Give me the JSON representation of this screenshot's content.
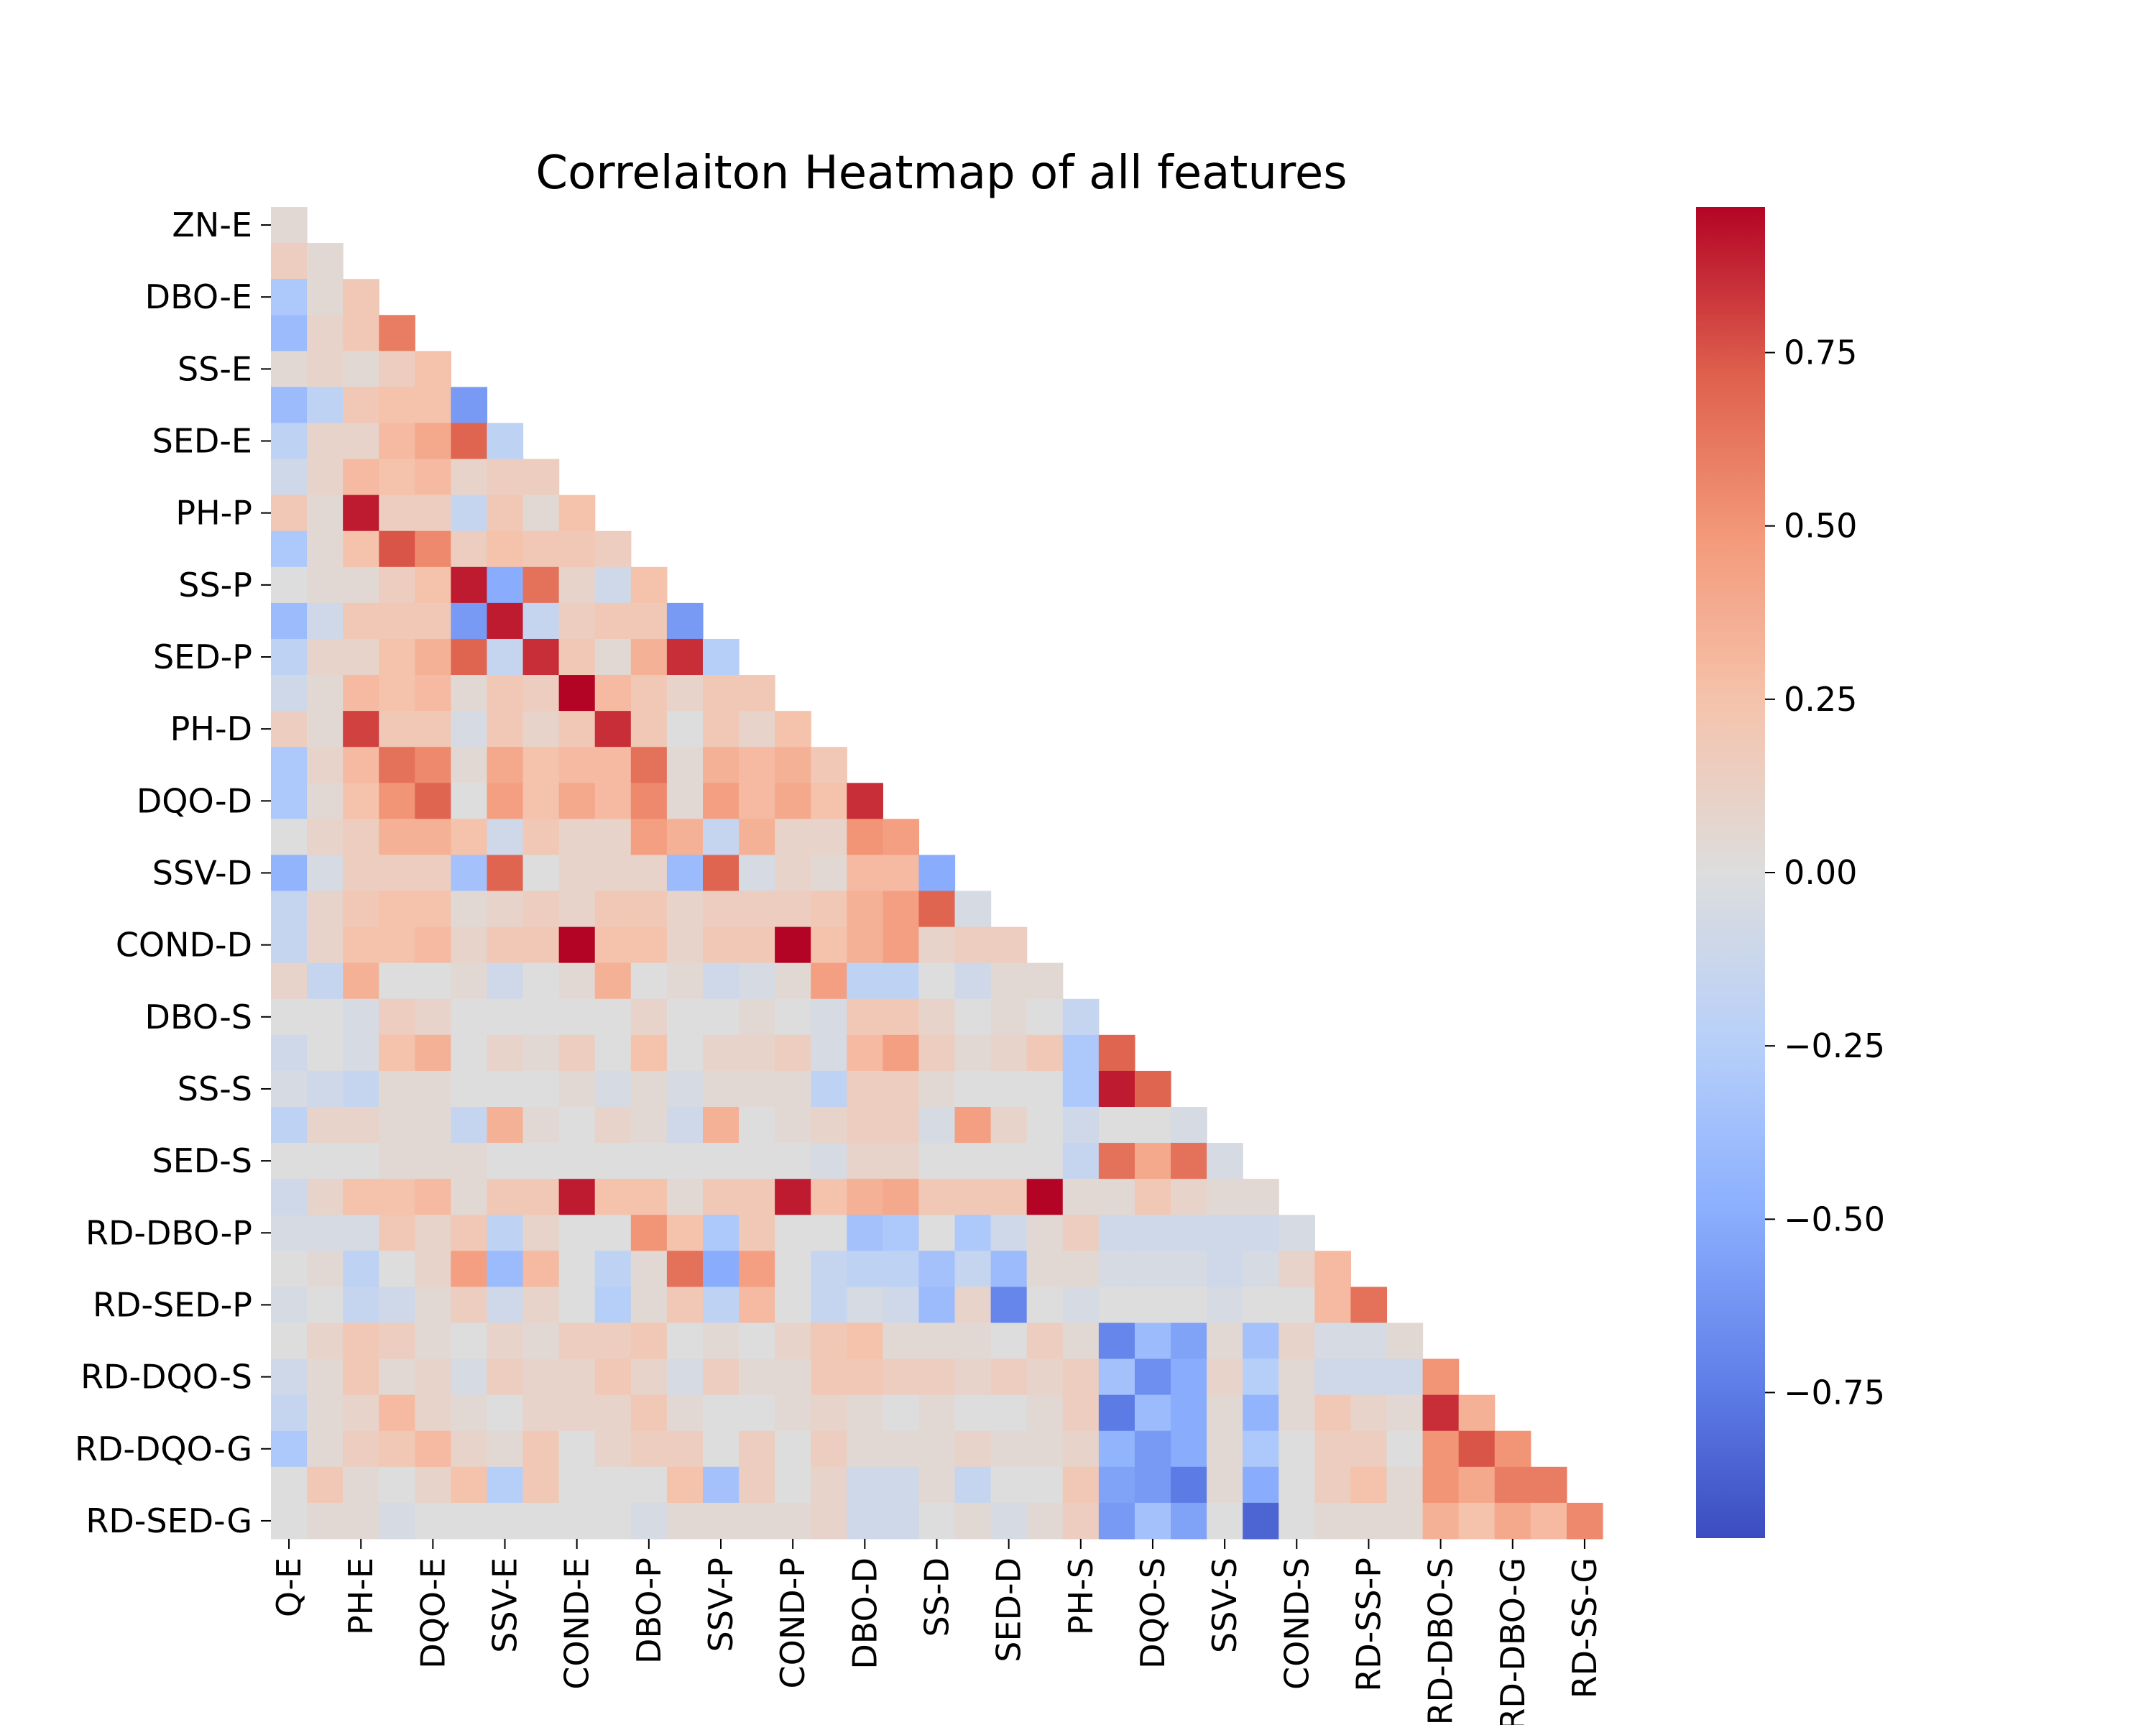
{
  "chart_data": {
    "type": "heatmap",
    "title": "Correlaiton Heatmap of all features",
    "mask": "upper-triangle",
    "colormap": "coolwarm",
    "color_range": [
      -0.96,
      0.96
    ],
    "features": [
      "Q-E",
      "ZN-E",
      "PH-E",
      "DBO-E",
      "DQO-E",
      "SS-E",
      "SSV-E",
      "SED-E",
      "COND-E",
      "PH-P",
      "DBO-P",
      "SS-P",
      "SSV-P",
      "SED-P",
      "COND-P",
      "PH-D",
      "DBO-D",
      "DQO-D",
      "SS-D",
      "SSV-D",
      "SED-D",
      "COND-D",
      "PH-S",
      "DBO-S",
      "DQO-S",
      "SS-S",
      "SSV-S",
      "SED-S",
      "COND-S",
      "RD-DBO-P",
      "RD-SS-P",
      "RD-SED-P",
      "RD-DBO-S",
      "RD-DQO-S",
      "RD-DBO-G",
      "RD-DQO-G",
      "RD-SS-G",
      "RD-SED-G"
    ],
    "y_tick_labels": [
      "ZN-E",
      "DBO-E",
      "SS-E",
      "SED-E",
      "PH-P",
      "SS-P",
      "SED-P",
      "PH-D",
      "DQO-D",
      "SSV-D",
      "COND-D",
      "DBO-S",
      "SS-S",
      "SED-S",
      "RD-DBO-P",
      "RD-SED-P",
      "RD-DQO-S",
      "RD-DQO-G",
      "RD-SED-G"
    ],
    "x_tick_labels": [
      "Q-E",
      "PH-E",
      "DQO-E",
      "SSV-E",
      "COND-E",
      "DBO-P",
      "SSV-P",
      "COND-P",
      "DBO-D",
      "SS-D",
      "SED-D",
      "PH-S",
      "DQO-S",
      "SSV-S",
      "COND-S",
      "RD-SS-P",
      "RD-DBO-S",
      "RD-DBO-G",
      "RD-SS-G"
    ],
    "colorbar_ticks": [
      "0.75",
      "0.50",
      "0.25",
      "0.00",
      "−0.25",
      "−0.50",
      "−0.75"
    ],
    "colorbar_tick_values": [
      0.75,
      0.5,
      0.25,
      0.0,
      -0.25,
      -0.5,
      -0.75
    ],
    "rows": [
      [
        0.05
      ],
      [
        0.15,
        0.05
      ],
      [
        -0.3,
        0.05,
        0.2
      ],
      [
        -0.4,
        0.1,
        0.2,
        0.6
      ],
      [
        0.05,
        0.1,
        0.05,
        0.15,
        0.25
      ],
      [
        -0.4,
        -0.2,
        0.2,
        0.25,
        0.25,
        -0.6
      ],
      [
        -0.2,
        0.1,
        0.1,
        0.3,
        0.4,
        0.7,
        -0.2
      ],
      [
        -0.1,
        0.1,
        0.3,
        0.25,
        0.3,
        0.1,
        0.15,
        0.15
      ],
      [
        0.2,
        0.05,
        0.9,
        0.15,
        0.15,
        -0.15,
        0.2,
        0.05,
        0.25
      ],
      [
        -0.3,
        0.05,
        0.25,
        0.75,
        0.55,
        0.15,
        0.25,
        0.2,
        0.2,
        0.15
      ],
      [
        0.0,
        0.05,
        0.05,
        0.15,
        0.25,
        0.9,
        -0.5,
        0.65,
        0.1,
        -0.1,
        0.25
      ],
      [
        -0.4,
        -0.1,
        0.2,
        0.2,
        0.2,
        -0.6,
        0.9,
        -0.15,
        0.15,
        0.2,
        0.2,
        -0.6
      ],
      [
        -0.2,
        0.1,
        0.1,
        0.25,
        0.35,
        0.7,
        -0.15,
        0.85,
        0.2,
        0.05,
        0.35,
        0.85,
        -0.25
      ],
      [
        -0.1,
        0.05,
        0.3,
        0.25,
        0.3,
        0.05,
        0.2,
        0.15,
        0.96,
        0.3,
        0.2,
        0.1,
        0.2,
        0.2
      ],
      [
        0.15,
        0.05,
        0.8,
        0.2,
        0.2,
        -0.05,
        0.2,
        0.1,
        0.2,
        0.85,
        0.2,
        0.0,
        0.2,
        0.1,
        0.25
      ],
      [
        -0.3,
        0.1,
        0.3,
        0.65,
        0.55,
        0.05,
        0.4,
        0.25,
        0.3,
        0.3,
        0.65,
        0.05,
        0.35,
        0.3,
        0.35,
        0.2
      ],
      [
        -0.3,
        0.05,
        0.25,
        0.5,
        0.7,
        0.0,
        0.45,
        0.25,
        0.4,
        0.3,
        0.55,
        0.05,
        0.45,
        0.3,
        0.4,
        0.25,
        0.85
      ],
      [
        0.0,
        0.1,
        0.15,
        0.35,
        0.35,
        0.25,
        -0.1,
        0.2,
        0.1,
        0.1,
        0.45,
        0.35,
        -0.15,
        0.35,
        0.1,
        0.1,
        0.5,
        0.45
      ],
      [
        -0.45,
        -0.05,
        0.15,
        0.15,
        0.15,
        -0.35,
        0.7,
        0.0,
        0.1,
        0.1,
        0.1,
        -0.4,
        0.7,
        -0.05,
        0.1,
        0.05,
        0.3,
        0.3,
        -0.5
      ],
      [
        -0.15,
        0.1,
        0.2,
        0.25,
        0.25,
        0.05,
        0.1,
        0.15,
        0.1,
        0.2,
        0.2,
        0.1,
        0.15,
        0.15,
        0.15,
        0.2,
        0.35,
        0.45,
        0.7,
        -0.05
      ],
      [
        -0.15,
        0.1,
        0.25,
        0.25,
        0.3,
        0.1,
        0.2,
        0.2,
        0.96,
        0.25,
        0.25,
        0.1,
        0.2,
        0.2,
        0.96,
        0.25,
        0.35,
        0.45,
        0.1,
        0.15,
        0.15
      ],
      [
        0.1,
        -0.15,
        0.35,
        0.0,
        0.0,
        0.05,
        -0.1,
        0.0,
        0.05,
        0.35,
        0.0,
        0.05,
        -0.1,
        -0.05,
        0.05,
        0.45,
        -0.2,
        -0.2,
        0.0,
        -0.1,
        0.05,
        0.05
      ],
      [
        0.0,
        0.0,
        -0.05,
        0.15,
        0.1,
        0.0,
        0.0,
        0.0,
        0.0,
        0.0,
        0.1,
        0.0,
        0.0,
        0.05,
        0.0,
        -0.05,
        0.2,
        0.2,
        0.1,
        0.0,
        0.05,
        0.0,
        -0.15
      ],
      [
        -0.1,
        0.0,
        -0.05,
        0.25,
        0.35,
        0.0,
        0.1,
        0.05,
        0.15,
        0.0,
        0.25,
        0.0,
        0.1,
        0.1,
        0.15,
        -0.05,
        0.3,
        0.45,
        0.15,
        0.05,
        0.1,
        0.2,
        -0.3,
        0.7
      ],
      [
        -0.05,
        -0.1,
        -0.15,
        0.05,
        0.05,
        0.0,
        0.0,
        0.0,
        0.05,
        -0.05,
        0.05,
        -0.05,
        0.05,
        0.05,
        0.05,
        -0.2,
        0.15,
        0.15,
        0.05,
        0.0,
        0.0,
        0.0,
        -0.3,
        0.9,
        0.7
      ],
      [
        -0.2,
        0.1,
        0.1,
        0.05,
        0.05,
        -0.15,
        0.35,
        0.05,
        0.0,
        0.1,
        0.05,
        -0.1,
        0.35,
        0.0,
        0.05,
        0.1,
        0.15,
        0.15,
        -0.05,
        0.45,
        0.1,
        0.0,
        -0.1,
        0.0,
        0.0,
        -0.05
      ],
      [
        0.0,
        0.0,
        0.0,
        0.05,
        0.05,
        0.05,
        0.0,
        0.0,
        0.0,
        0.0,
        0.0,
        0.0,
        0.0,
        0.0,
        0.0,
        -0.05,
        0.1,
        0.1,
        0.0,
        0.0,
        0.0,
        0.0,
        -0.15,
        0.65,
        0.4,
        0.65,
        -0.05
      ],
      [
        -0.1,
        0.1,
        0.25,
        0.25,
        0.3,
        0.05,
        0.2,
        0.2,
        0.9,
        0.25,
        0.25,
        0.05,
        0.2,
        0.2,
        0.9,
        0.25,
        0.35,
        0.4,
        0.2,
        0.2,
        0.2,
        0.96,
        0.05,
        0.05,
        0.2,
        0.1,
        0.05,
        0.05
      ],
      [
        -0.05,
        -0.05,
        -0.05,
        0.2,
        0.1,
        0.2,
        -0.2,
        0.1,
        0.0,
        0.0,
        0.5,
        0.25,
        -0.3,
        0.2,
        0.0,
        0.0,
        -0.35,
        -0.3,
        0.0,
        -0.3,
        -0.1,
        0.05,
        0.15,
        -0.1,
        -0.1,
        -0.1,
        -0.1,
        -0.1,
        -0.05
      ],
      [
        0.0,
        0.05,
        -0.2,
        0.0,
        0.1,
        0.45,
        -0.4,
        0.3,
        0.0,
        -0.2,
        0.05,
        0.65,
        -0.5,
        0.45,
        0.0,
        -0.15,
        -0.2,
        -0.2,
        -0.35,
        -0.15,
        -0.4,
        0.05,
        0.05,
        -0.05,
        -0.05,
        -0.05,
        -0.1,
        -0.05,
        0.1,
        0.3
      ],
      [
        -0.05,
        0.0,
        -0.15,
        -0.1,
        0.05,
        0.15,
        -0.1,
        0.1,
        0.0,
        -0.25,
        0.05,
        0.2,
        -0.2,
        0.3,
        0.0,
        -0.15,
        -0.05,
        -0.1,
        -0.4,
        0.1,
        -0.7,
        0.0,
        -0.05,
        0.0,
        0.0,
        0.0,
        -0.05,
        0.0,
        0.0,
        0.3,
        0.65
      ],
      [
        0.0,
        0.1,
        0.2,
        0.15,
        0.05,
        0.0,
        0.1,
        0.05,
        0.15,
        0.15,
        0.2,
        0.0,
        0.05,
        0.0,
        0.1,
        0.2,
        0.25,
        0.05,
        0.05,
        0.05,
        0.0,
        0.15,
        0.05,
        -0.7,
        -0.4,
        -0.55,
        0.05,
        -0.35,
        0.1,
        -0.05,
        -0.05,
        0.05
      ],
      [
        -0.1,
        0.05,
        0.2,
        0.05,
        0.1,
        -0.05,
        0.15,
        0.1,
        0.1,
        0.2,
        0.1,
        -0.05,
        0.15,
        0.05,
        0.05,
        0.2,
        0.2,
        0.15,
        0.15,
        0.1,
        0.15,
        0.1,
        0.15,
        -0.35,
        -0.65,
        -0.5,
        0.1,
        -0.25,
        0.05,
        -0.1,
        -0.1,
        -0.1,
        0.5
      ],
      [
        -0.15,
        0.05,
        0.1,
        0.3,
        0.1,
        0.05,
        0.0,
        0.1,
        0.1,
        0.1,
        0.2,
        0.05,
        0.0,
        0.0,
        0.05,
        0.1,
        0.05,
        0.0,
        0.05,
        0.0,
        0.0,
        0.05,
        0.15,
        -0.75,
        -0.4,
        -0.5,
        0.05,
        -0.45,
        0.05,
        0.2,
        0.1,
        0.05,
        0.85,
        0.35
      ],
      [
        -0.3,
        0.05,
        0.15,
        0.2,
        0.3,
        0.1,
        0.05,
        0.2,
        0.0,
        0.1,
        0.15,
        0.15,
        0.0,
        0.15,
        0.0,
        0.15,
        0.05,
        0.05,
        0.05,
        0.1,
        0.05,
        0.05,
        0.1,
        -0.45,
        -0.6,
        -0.5,
        0.05,
        -0.3,
        0.0,
        0.15,
        0.15,
        0.0,
        0.5,
        0.75,
        0.5
      ],
      [
        0.0,
        0.2,
        0.05,
        0.0,
        0.1,
        0.25,
        -0.25,
        0.2,
        0.0,
        0.0,
        0.0,
        0.25,
        -0.35,
        0.15,
        0.0,
        0.1,
        -0.1,
        -0.1,
        0.05,
        -0.15,
        0.0,
        0.0,
        0.2,
        -0.55,
        -0.6,
        -0.75,
        0.05,
        -0.5,
        0.0,
        0.15,
        0.25,
        0.05,
        0.5,
        0.4,
        0.6,
        0.6
      ],
      [
        0.0,
        0.05,
        0.05,
        -0.05,
        0.0,
        0.0,
        0.0,
        0.0,
        0.0,
        0.0,
        -0.05,
        0.05,
        0.05,
        0.05,
        0.05,
        0.1,
        -0.1,
        -0.1,
        0.0,
        0.05,
        -0.05,
        0.05,
        0.15,
        -0.6,
        -0.35,
        -0.55,
        0.0,
        -0.85,
        0.0,
        0.05,
        0.05,
        0.05,
        0.35,
        0.25,
        0.4,
        0.3,
        0.55
      ]
    ]
  }
}
